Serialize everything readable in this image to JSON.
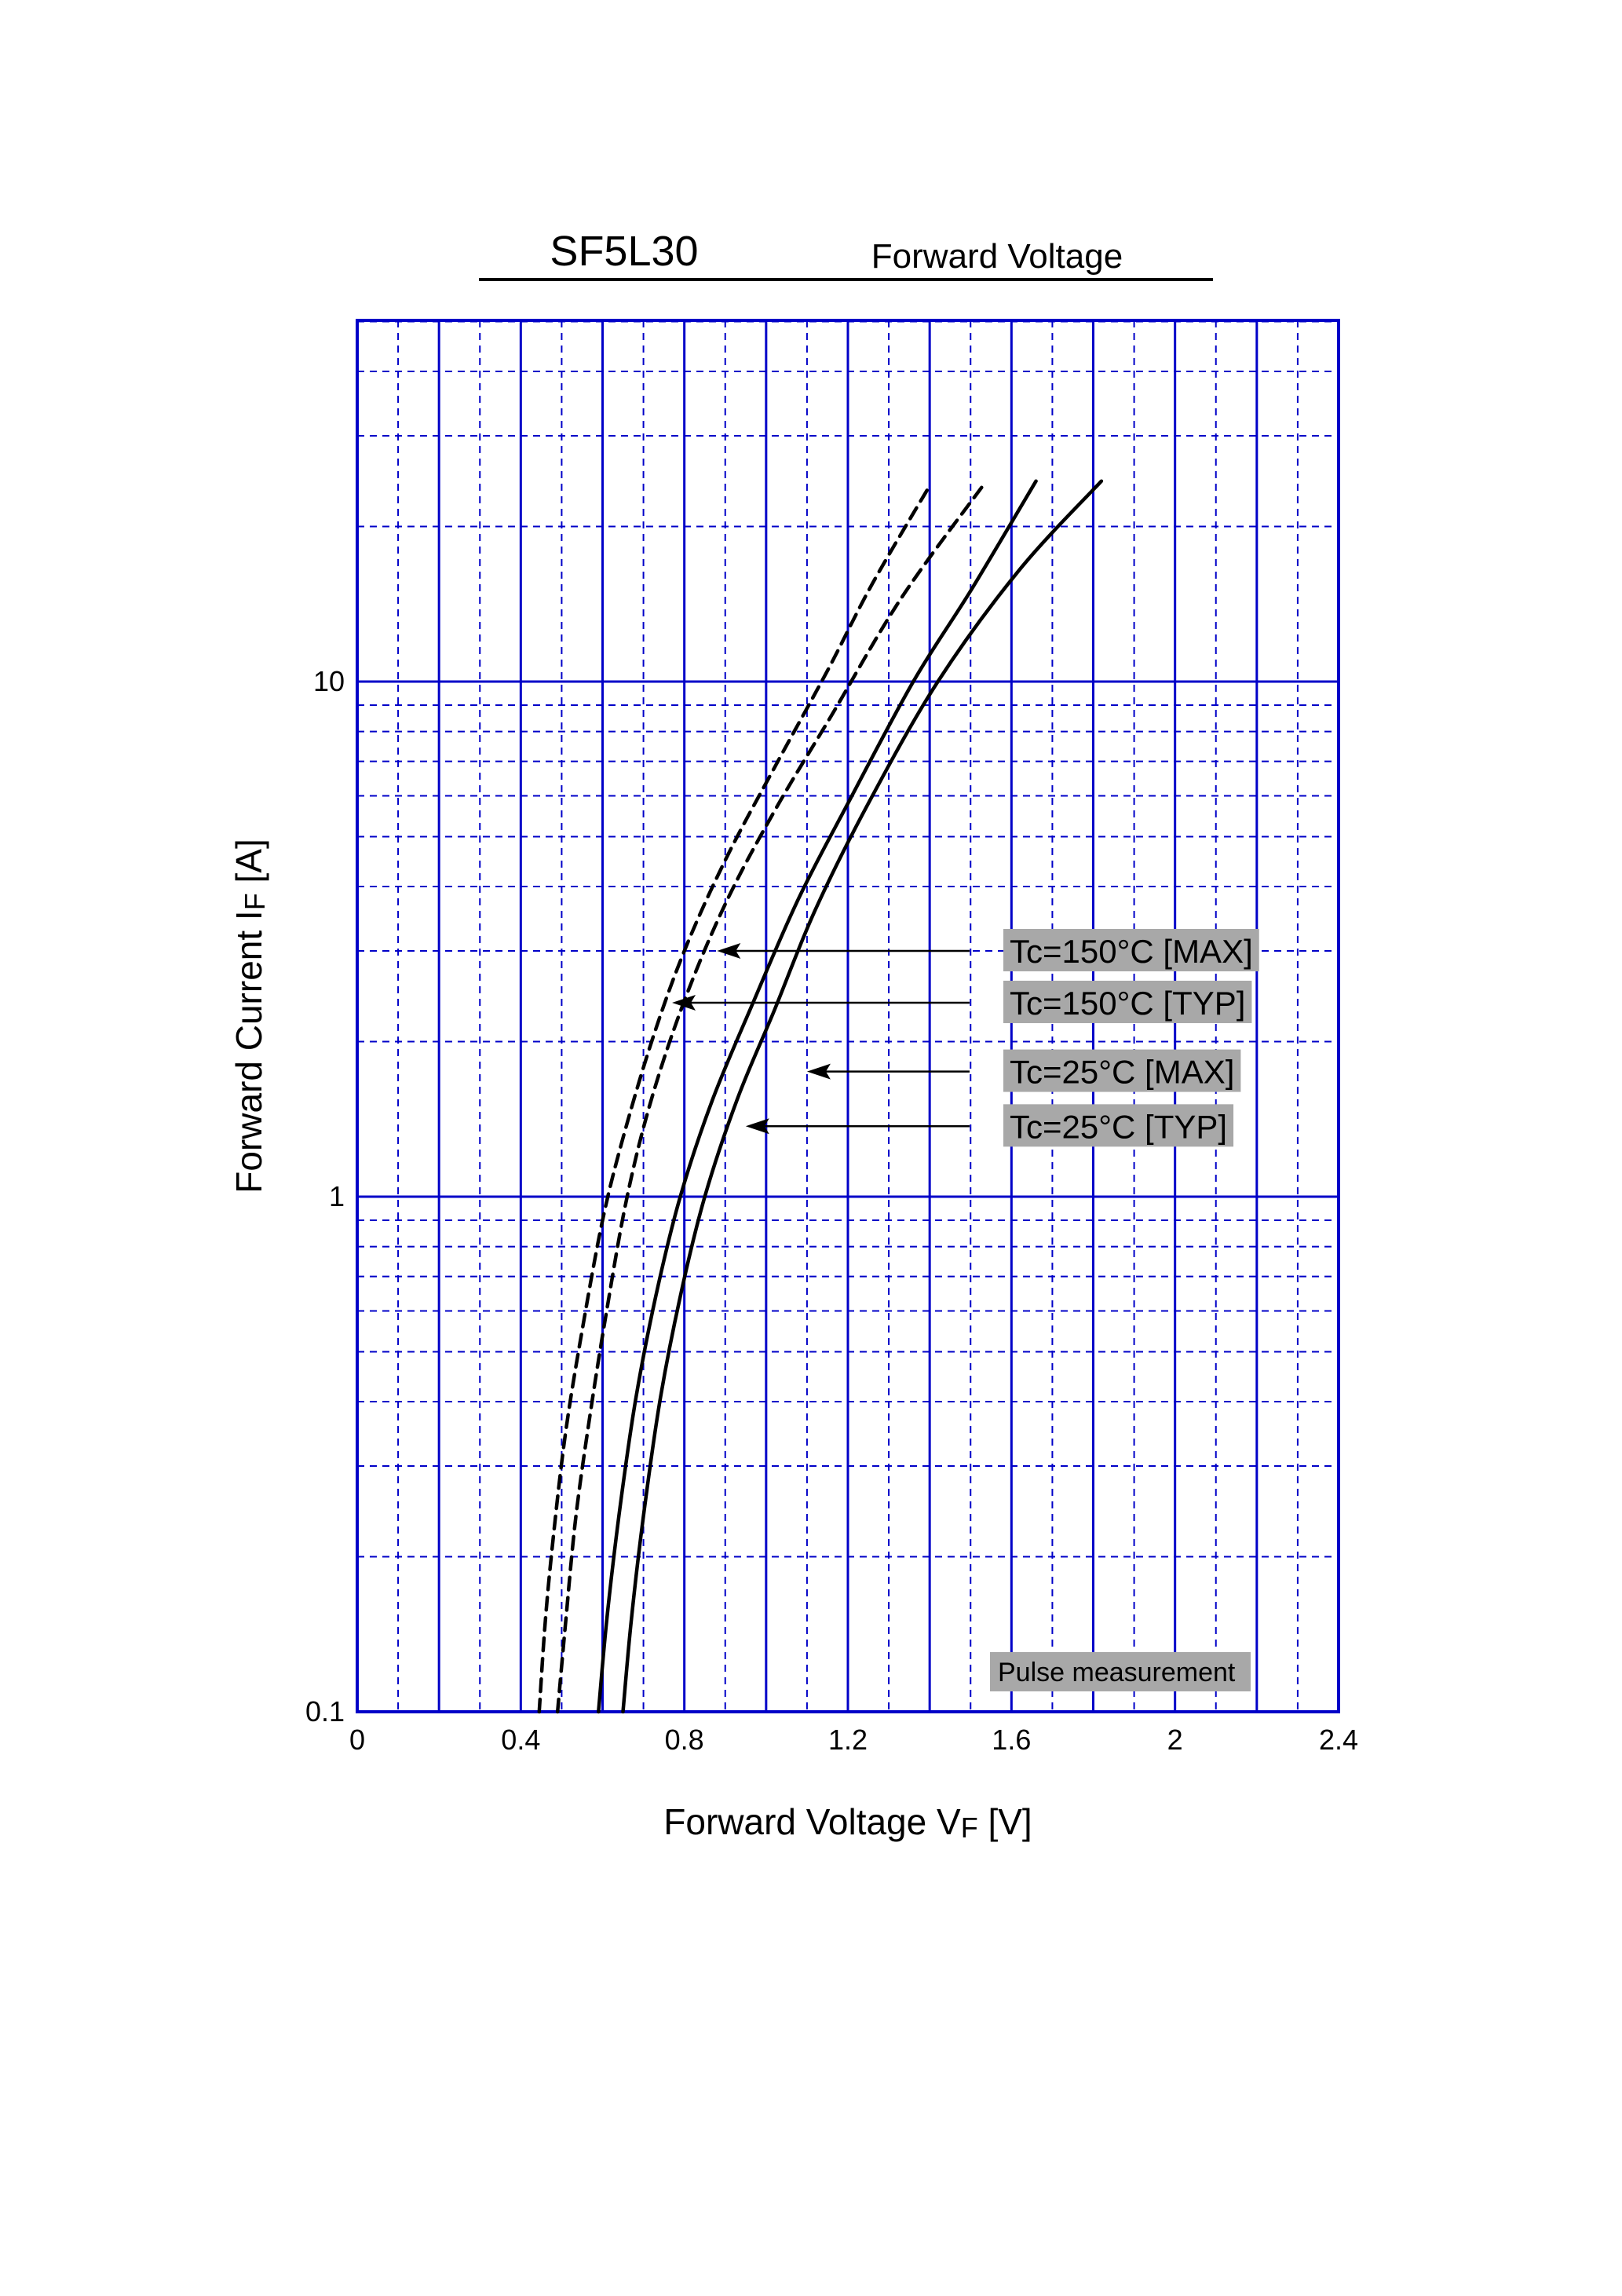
{
  "header": {
    "part_number": "SF5L30",
    "title": "Forward Voltage"
  },
  "colors": {
    "grid": "#0000c8",
    "curve": "#000000",
    "label_box": "#a8a8a8"
  },
  "chart_data": {
    "type": "line",
    "x_scale": "linear",
    "y_scale": "log",
    "xlabel": {
      "main": "Forward Voltage  V",
      "sub": "F",
      "unit": "  [V]"
    },
    "ylabel": {
      "main": "Forward Current  I",
      "sub": "F",
      "unit": "  [A]"
    },
    "xlim": [
      0,
      2.4
    ],
    "ylim": [
      0.1,
      27
    ],
    "x_ticks": [
      {
        "v": 0,
        "label": "0"
      },
      {
        "v": 0.4,
        "label": "0.4"
      },
      {
        "v": 0.8,
        "label": "0.8"
      },
      {
        "v": 1.2,
        "label": "1.2"
      },
      {
        "v": 1.6,
        "label": "1.6"
      },
      {
        "v": 2.0,
        "label": "2"
      },
      {
        "v": 2.4,
        "label": "2.4"
      }
    ],
    "y_ticks": [
      {
        "v": 0.1,
        "label": "0.1"
      },
      {
        "v": 1,
        "label": "1"
      },
      {
        "v": 10,
        "label": "10"
      }
    ],
    "grid": true,
    "series": [
      {
        "name": "Tc=150°C [MAX]",
        "dashed": true,
        "arrow_at": [
          0.88,
          3.0
        ],
        "points": [
          [
            0.445,
            0.1
          ],
          [
            0.46,
            0.15
          ],
          [
            0.48,
            0.22
          ],
          [
            0.51,
            0.35
          ],
          [
            0.55,
            0.55
          ],
          [
            0.6,
            0.9
          ],
          [
            0.65,
            1.3
          ],
          [
            0.72,
            2.0
          ],
          [
            0.8,
            3.0
          ],
          [
            0.9,
            4.5
          ],
          [
            1.02,
            6.8
          ],
          [
            1.15,
            10.5
          ],
          [
            1.26,
            15.5
          ],
          [
            1.4,
            24
          ]
        ]
      },
      {
        "name": "Tc=150°C [TYP]",
        "dashed": true,
        "arrow_at": [
          0.77,
          2.4
        ],
        "points": [
          [
            0.49,
            0.1
          ],
          [
            0.51,
            0.15
          ],
          [
            0.535,
            0.24
          ],
          [
            0.57,
            0.38
          ],
          [
            0.61,
            0.6
          ],
          [
            0.66,
            1.0
          ],
          [
            0.72,
            1.55
          ],
          [
            0.8,
            2.4
          ],
          [
            0.9,
            3.7
          ],
          [
            1.02,
            5.6
          ],
          [
            1.16,
            8.6
          ],
          [
            1.33,
            14.5
          ],
          [
            1.53,
            24
          ]
        ]
      },
      {
        "name": "Tc=25°C [MAX]",
        "dashed": false,
        "arrow_at": [
          1.1,
          1.75
        ],
        "points": [
          [
            0.65,
            0.1
          ],
          [
            0.67,
            0.15
          ],
          [
            0.7,
            0.24
          ],
          [
            0.74,
            0.4
          ],
          [
            0.79,
            0.64
          ],
          [
            0.85,
            1.0
          ],
          [
            0.93,
            1.55
          ],
          [
            1.02,
            2.3
          ],
          [
            1.12,
            3.6
          ],
          [
            1.25,
            5.8
          ],
          [
            1.42,
            10.0
          ],
          [
            1.62,
            16.5
          ],
          [
            1.82,
            24.5
          ]
        ]
      },
      {
        "name": "Tc=25°C [TYP]",
        "dashed": false,
        "arrow_at": [
          0.95,
          1.38
        ],
        "points": [
          [
            0.59,
            0.1
          ],
          [
            0.61,
            0.15
          ],
          [
            0.64,
            0.24
          ],
          [
            0.68,
            0.4
          ],
          [
            0.73,
            0.64
          ],
          [
            0.79,
            1.0
          ],
          [
            0.87,
            1.55
          ],
          [
            0.97,
            2.4
          ],
          [
            1.08,
            3.8
          ],
          [
            1.2,
            5.8
          ],
          [
            1.36,
            10.0
          ],
          [
            1.5,
            15.0
          ],
          [
            1.66,
            24.5
          ]
        ]
      }
    ],
    "annotations": [
      {
        "text": "Tc=150°C [MAX]",
        "series": 0,
        "box_y": 3.0
      },
      {
        "text": "Tc=150°C [TYP]",
        "series": 1,
        "box_y": 2.38
      },
      {
        "text": "Tc=25°C [MAX]",
        "series": 2,
        "box_y": 1.75
      },
      {
        "text": "Tc=25°C [TYP]",
        "series": 3,
        "box_y": 1.37
      }
    ],
    "note": "Pulse measurement"
  }
}
